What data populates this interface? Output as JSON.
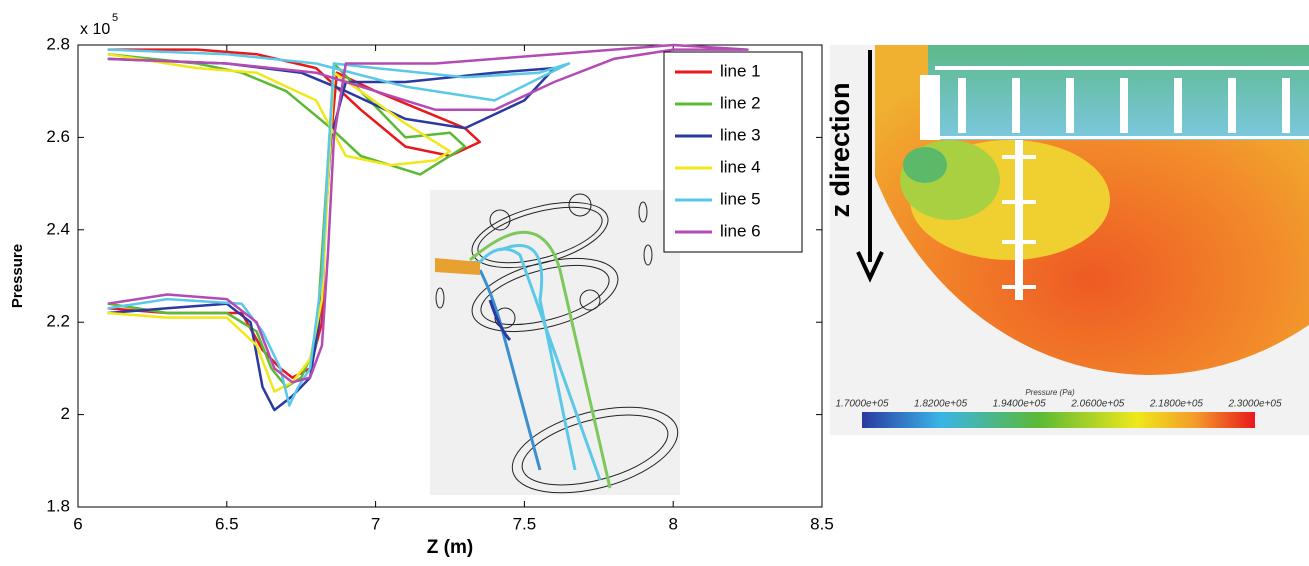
{
  "chart_data": {
    "type": "line",
    "xlabel": "Z (m)",
    "ylabel": "Pressure",
    "y_multiplier": "x 10",
    "y_multiplier_exponent": "5",
    "xlim": [
      6,
      8.5
    ],
    "xticks": [
      6,
      6.5,
      7,
      7.5,
      8,
      8.5
    ],
    "ylim": [
      1.8,
      2.8
    ],
    "yticks": [
      1.8,
      2,
      2.2,
      2.4,
      2.6,
      2.8
    ],
    "legend": "upper right",
    "series": [
      {
        "name": "line 1",
        "color": "#e8191c",
        "x": [
          6.1,
          6.4,
          6.6,
          6.8,
          6.95,
          7.1,
          7.25,
          7.35,
          7.3,
          7.15,
          7.0,
          6.87,
          6.85,
          6.83,
          6.82,
          6.78,
          6.72,
          6.68,
          6.62,
          6.55,
          6.3,
          6.1
        ],
        "values": [
          2.79,
          2.79,
          2.78,
          2.75,
          2.66,
          2.58,
          2.56,
          2.59,
          2.62,
          2.66,
          2.7,
          2.74,
          2.6,
          2.4,
          2.2,
          2.1,
          2.08,
          2.1,
          2.14,
          2.22,
          2.22,
          2.23
        ]
      },
      {
        "name": "line 2",
        "color": "#5cb936",
        "x": [
          6.1,
          6.4,
          6.55,
          6.7,
          6.85,
          6.95,
          7.15,
          7.3,
          7.25,
          7.1,
          6.95,
          6.86,
          6.84,
          6.82,
          6.8,
          6.75,
          6.7,
          6.65,
          6.6,
          6.5,
          6.3,
          6.1
        ],
        "values": [
          2.78,
          2.76,
          2.74,
          2.7,
          2.62,
          2.56,
          2.52,
          2.58,
          2.61,
          2.6,
          2.7,
          2.76,
          2.55,
          2.35,
          2.15,
          2.08,
          2.06,
          2.1,
          2.18,
          2.22,
          2.22,
          2.24
        ]
      },
      {
        "name": "line 3",
        "color": "#2a3aa0",
        "x": [
          6.1,
          6.5,
          6.75,
          6.9,
          7.1,
          7.3,
          7.5,
          7.6,
          7.4,
          7.1,
          6.9,
          6.85,
          6.83,
          6.81,
          6.78,
          6.72,
          6.66,
          6.62,
          6.58,
          6.5,
          6.3,
          6.1
        ],
        "values": [
          2.77,
          2.76,
          2.74,
          2.7,
          2.64,
          2.62,
          2.68,
          2.75,
          2.74,
          2.72,
          2.72,
          2.6,
          2.4,
          2.2,
          2.08,
          2.04,
          2.01,
          2.06,
          2.2,
          2.24,
          2.23,
          2.22
        ]
      },
      {
        "name": "line 4",
        "color": "#f0e81a",
        "x": [
          6.1,
          6.4,
          6.6,
          6.8,
          6.9,
          7.05,
          7.2,
          7.25,
          7.1,
          6.95,
          6.86,
          6.84,
          6.82,
          6.78,
          6.72,
          6.66,
          6.6,
          6.5,
          6.3,
          6.1
        ],
        "values": [
          2.78,
          2.75,
          2.74,
          2.68,
          2.56,
          2.54,
          2.55,
          2.57,
          2.63,
          2.7,
          2.74,
          2.5,
          2.25,
          2.12,
          2.07,
          2.05,
          2.15,
          2.21,
          2.21,
          2.22
        ]
      },
      {
        "name": "line 5",
        "color": "#5bc8e8",
        "x": [
          6.1,
          6.5,
          6.8,
          7.1,
          7.4,
          7.65,
          7.55,
          7.3,
          7.0,
          6.86,
          6.84,
          6.82,
          6.78,
          6.74,
          6.71,
          6.68,
          6.62,
          6.55,
          6.3,
          6.1
        ],
        "values": [
          2.79,
          2.78,
          2.76,
          2.71,
          2.68,
          2.76,
          2.74,
          2.73,
          2.75,
          2.76,
          2.55,
          2.3,
          2.1,
          2.06,
          2.02,
          2.1,
          2.18,
          2.24,
          2.25,
          2.23
        ]
      },
      {
        "name": "line 6",
        "color": "#b44bb4",
        "x": [
          6.1,
          6.5,
          6.8,
          7.0,
          7.2,
          7.4,
          7.6,
          7.8,
          8.0,
          8.25,
          8.0,
          7.6,
          7.2,
          6.9,
          6.86,
          6.84,
          6.82,
          6.78,
          6.72,
          6.66,
          6.6,
          6.5,
          6.3,
          6.1
        ],
        "values": [
          2.77,
          2.76,
          2.74,
          2.7,
          2.66,
          2.66,
          2.72,
          2.77,
          2.79,
          2.79,
          2.8,
          2.78,
          2.76,
          2.76,
          2.6,
          2.35,
          2.15,
          2.08,
          2.07,
          2.1,
          2.2,
          2.25,
          2.26,
          2.24
        ]
      }
    ]
  },
  "contour": {
    "direction_label": "z direction",
    "colorbar_title": "Pressure (Pa)",
    "colorbar_labels": [
      "1.7000e+05",
      "1.8200e+05",
      "1.9400e+05",
      "2.0600e+05",
      "2.1800e+05",
      "2.3000e+05"
    ]
  }
}
